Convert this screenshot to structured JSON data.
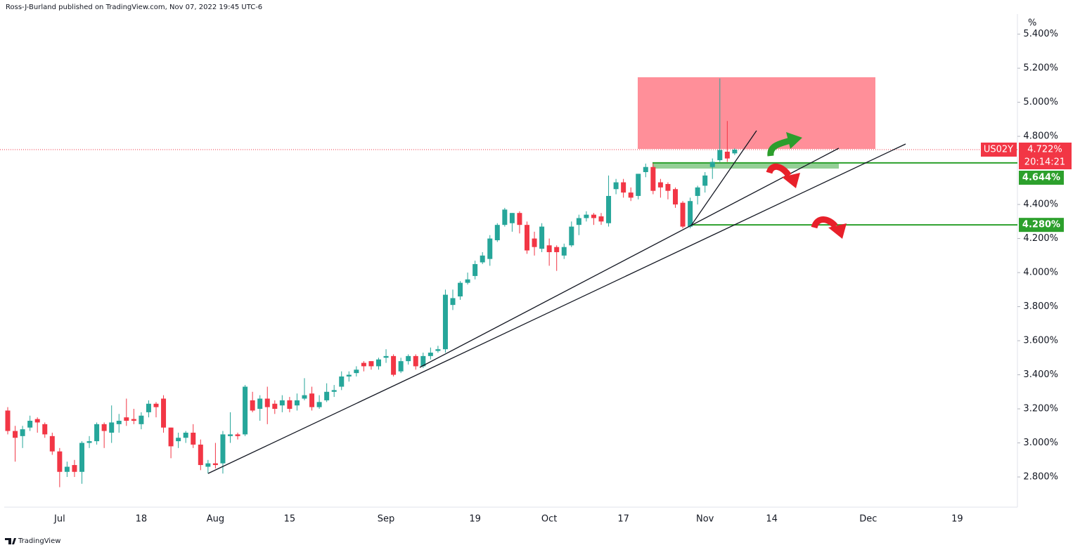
{
  "chart_data": {
    "type": "candlestick",
    "attribution": "Ross-J-Burland published on TradingView.com, Nov 07, 2022 19:45 UTC-6",
    "symbol": "US02Y",
    "countdown": "20:14:21",
    "y_unit": "%",
    "footer": "TradingView",
    "up_color": "#26a69a",
    "down_color": "#f23645",
    "level_color": "#2ca02c",
    "categories": [
      null,
      null,
      null,
      null,
      null,
      null,
      null,
      "Jul",
      null,
      null,
      null,
      null,
      null,
      null,
      null,
      null,
      null,
      null,
      "18",
      null,
      null,
      null,
      null,
      null,
      null,
      null,
      null,
      null,
      "Aug",
      null,
      null,
      null,
      null,
      null,
      null,
      null,
      null,
      null,
      "15",
      null,
      null,
      null,
      null,
      null,
      null,
      null,
      null,
      null,
      null,
      null,
      null,
      "Sep",
      null,
      null,
      null,
      null,
      null,
      null,
      null,
      null,
      null,
      null,
      null,
      "19",
      null,
      null,
      null,
      null,
      null,
      null,
      null,
      null,
      null,
      "Oct",
      null,
      null,
      null,
      null,
      null,
      null,
      null,
      null,
      null,
      "17",
      null,
      null,
      null,
      null,
      null,
      null,
      null,
      null,
      null,
      null,
      "Nov",
      null,
      null,
      null,
      null,
      null,
      null,
      null,
      null,
      "14",
      null,
      null,
      null,
      null,
      null,
      null,
      null,
      null,
      null,
      null,
      null,
      null,
      "Dec",
      null,
      null,
      null,
      null,
      null,
      null,
      null,
      null,
      null,
      null,
      null,
      "19"
    ],
    "open": [
      3.19,
      3.07,
      3.04,
      3.09,
      3.14,
      3.11,
      3.04,
      2.95,
      2.83,
      2.87,
      2.83,
      3.0,
      3.01,
      3.11,
      3.06,
      3.11,
      3.15,
      3.14,
      3.11,
      3.18,
      3.23,
      3.26,
      3.09,
      3.01,
      3.03,
      3.06,
      2.99,
      2.86,
      2.88,
      2.88,
      3.04,
      3.05,
      3.05,
      3.25,
      3.2,
      3.26,
      3.23,
      3.22,
      3.25,
      3.22,
      3.26,
      3.29,
      3.21,
      3.25,
      3.3,
      3.33,
      3.39,
      3.41,
      3.47,
      3.48,
      3.45,
      3.5,
      3.51,
      3.42,
      3.48,
      3.51,
      3.45,
      3.51,
      3.54,
      3.55,
      3.81,
      3.86,
      3.94,
      3.98,
      4.06,
      4.08,
      4.19,
      4.28,
      4.29,
      4.35,
      4.28,
      4.2,
      4.14,
      4.16,
      4.15,
      4.1,
      4.16,
      4.28,
      4.32,
      4.34,
      4.33,
      4.29,
      4.49,
      4.53,
      4.47,
      4.45,
      4.59,
      4.62,
      4.53,
      4.52,
      4.49,
      4.41,
      4.27,
      4.45,
      4.51,
      4.62,
      4.66,
      4.71,
      4.7,
      null,
      null,
      null,
      null,
      null,
      null,
      null,
      null,
      null,
      null,
      null,
      null,
      null,
      null,
      null,
      null,
      null,
      null,
      null,
      null,
      null,
      null,
      null,
      null,
      null,
      null,
      null,
      null,
      null,
      null
    ],
    "high": [
      3.21,
      3.1,
      3.1,
      3.16,
      3.15,
      3.12,
      3.06,
      2.97,
      2.89,
      2.9,
      3.01,
      3.04,
      3.12,
      3.12,
      3.22,
      3.17,
      3.26,
      3.2,
      3.18,
      3.25,
      3.24,
      3.28,
      3.09,
      3.06,
      3.07,
      3.11,
      3.02,
      2.9,
      3.0,
      3.07,
      3.18,
      3.06,
      3.34,
      3.3,
      3.28,
      3.33,
      3.25,
      3.28,
      3.27,
      3.29,
      3.38,
      3.33,
      3.28,
      3.35,
      3.34,
      3.42,
      3.42,
      3.45,
      3.48,
      3.48,
      3.5,
      3.55,
      3.52,
      3.5,
      3.52,
      3.52,
      3.53,
      3.56,
      3.57,
      3.9,
      3.9,
      3.95,
      4.0,
      4.07,
      4.12,
      4.22,
      4.29,
      4.38,
      4.35,
      4.36,
      4.3,
      4.24,
      4.29,
      4.2,
      4.16,
      4.17,
      4.3,
      4.34,
      4.36,
      4.35,
      4.35,
      4.57,
      4.55,
      4.55,
      4.5,
      4.58,
      4.64,
      4.64,
      4.55,
      4.53,
      4.5,
      4.42,
      4.44,
      4.51,
      4.59,
      4.67,
      5.14,
      4.89,
      4.73,
      null,
      null,
      null,
      null,
      null,
      null,
      null,
      null,
      null,
      null,
      null,
      null,
      null,
      null,
      null,
      null,
      null,
      null,
      null,
      null,
      null,
      null,
      null,
      null,
      null,
      null,
      null,
      null,
      null,
      null
    ],
    "low": [
      3.05,
      2.89,
      2.97,
      3.07,
      3.06,
      3.03,
      2.93,
      2.74,
      2.8,
      2.8,
      2.76,
      2.97,
      2.99,
      2.97,
      3.0,
      3.06,
      3.1,
      3.11,
      3.08,
      3.15,
      3.15,
      3.06,
      2.91,
      2.97,
      3.0,
      2.97,
      2.84,
      2.82,
      2.85,
      2.82,
      3.0,
      3.02,
      3.04,
      3.18,
      3.13,
      3.11,
      3.17,
      3.18,
      3.18,
      3.19,
      3.25,
      3.19,
      3.2,
      3.24,
      3.27,
      3.31,
      3.36,
      3.39,
      3.42,
      3.43,
      3.43,
      3.47,
      3.39,
      3.41,
      3.46,
      3.43,
      3.44,
      3.49,
      3.53,
      3.53,
      3.78,
      3.84,
      3.93,
      3.96,
      4.05,
      4.04,
      4.18,
      4.27,
      4.24,
      4.23,
      4.11,
      4.1,
      4.12,
      4.04,
      4.01,
      4.08,
      4.15,
      4.22,
      4.3,
      4.28,
      4.28,
      4.27,
      4.46,
      4.44,
      4.42,
      4.43,
      4.56,
      4.46,
      4.44,
      4.43,
      4.38,
      4.26,
      4.26,
      4.4,
      4.47,
      4.55,
      4.65,
      4.65,
      4.69,
      null,
      null,
      null,
      null,
      null,
      null,
      null,
      null,
      null,
      null,
      null,
      null,
      null,
      null,
      null,
      null,
      null,
      null,
      null,
      null,
      null,
      null,
      null,
      null,
      null,
      null,
      null,
      null,
      null,
      null
    ],
    "close": [
      3.07,
      3.03,
      3.08,
      3.13,
      3.12,
      3.05,
      2.95,
      2.83,
      2.86,
      2.83,
      3.0,
      3.01,
      3.11,
      3.07,
      3.12,
      3.13,
      3.13,
      3.13,
      3.16,
      3.23,
      3.21,
      3.09,
      2.98,
      3.03,
      3.06,
      2.99,
      2.87,
      2.88,
      2.87,
      3.05,
      3.05,
      3.04,
      3.33,
      3.19,
      3.26,
      3.21,
      3.2,
      3.25,
      3.2,
      3.25,
      3.28,
      3.21,
      3.24,
      3.3,
      3.31,
      3.39,
      3.4,
      3.43,
      3.45,
      3.45,
      3.49,
      3.51,
      3.4,
      3.48,
      3.51,
      3.45,
      3.51,
      3.53,
      3.55,
      3.87,
      3.85,
      3.94,
      3.96,
      4.05,
      4.1,
      4.2,
      4.28,
      4.37,
      4.35,
      4.28,
      4.13,
      4.15,
      4.27,
      4.12,
      4.12,
      4.15,
      4.27,
      4.32,
      4.34,
      4.32,
      4.3,
      4.45,
      4.53,
      4.47,
      4.44,
      4.58,
      4.62,
      4.48,
      4.5,
      4.48,
      4.4,
      4.27,
      4.42,
      4.5,
      4.57,
      4.65,
      4.72,
      4.67,
      4.722,
      null,
      null,
      null,
      null,
      null,
      null,
      null,
      null,
      null,
      null,
      null,
      null,
      null,
      null,
      null,
      null,
      null,
      null,
      null,
      null,
      null,
      null,
      null,
      null,
      null,
      null,
      null,
      null,
      null,
      null
    ],
    "last_price": {
      "value": 4.722,
      "label": "4.722%"
    },
    "levels": [
      {
        "value": 4.644,
        "label": "4.644%"
      },
      {
        "value": 4.28,
        "label": "4.280%"
      }
    ],
    "ylim": [
      2.631,
      5.518
    ],
    "yticks": [
      {
        "value": 5.4,
        "label": "5.400%"
      },
      {
        "value": 5.2,
        "label": "5.200%"
      },
      {
        "value": 5.0,
        "label": "5.000%"
      },
      {
        "value": 4.8,
        "label": "4.800%"
      },
      {
        "value": 4.4,
        "label": "4.400%"
      },
      {
        "value": 4.2,
        "label": "4.200%"
      },
      {
        "value": 4.0,
        "label": "4.000%"
      },
      {
        "value": 3.8,
        "label": "3.800%"
      },
      {
        "value": 3.6,
        "label": "3.600%"
      },
      {
        "value": 3.4,
        "label": "3.400%"
      },
      {
        "value": 3.2,
        "label": "3.200%"
      },
      {
        "value": 3.0,
        "label": "3.000%"
      },
      {
        "value": 2.8,
        "label": "2.800%"
      }
    ]
  }
}
